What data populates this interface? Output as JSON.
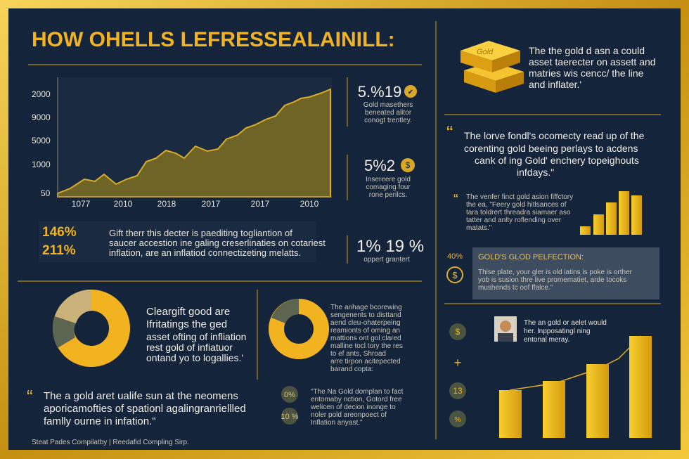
{
  "header": {
    "title": "HOW OHELLS LEFRESSEALAINILL:"
  },
  "trend": {
    "y_labels": [
      "2000",
      "9000",
      "5000",
      "1000",
      "50"
    ],
    "x_labels": [
      "1077",
      "2010",
      "2018",
      "2017",
      "2017",
      "2010"
    ]
  },
  "side_stats": [
    {
      "value": "5.%19",
      "icon": "✔",
      "lines": [
        "Gold masethers",
        "beneated alitor",
        "conogt trentley."
      ]
    },
    {
      "value": "5%2",
      "icon": "$",
      "lines": [
        "Insereere gold",
        "comaging four",
        "rone perilcs."
      ]
    },
    {
      "value": "1% 19 %",
      "lines": [
        "oppert grantert"
      ]
    }
  ],
  "summary": {
    "figures": [
      "146%",
      "211%"
    ],
    "lines": [
      "Gift therr this decter is paediting togliantion of",
      "saucer accestion ine galing creserlinaties on cotariest",
      "inflation, are an inflatiod connectizeting melatts."
    ]
  },
  "intro": {
    "lines": [
      "The the gold d asn a could",
      "asset taerecter on assett and",
      "matries wis cencc/ the line",
      "and inflater.'"
    ],
    "badge": "Gold"
  },
  "quote1": {
    "mark": "“",
    "lines": [
      "The lorve fondl's ocomecty read up of the",
      "corenting gold beeing perlays to acdens",
      "cank of ing Gold' enchery topeighouts",
      "infdays.\""
    ]
  },
  "quote2": {
    "mark": "“",
    "lines": [
      "The venfer finct gold asion fiffctory",
      "the ea, \"Feery gold hitlsances of",
      "tara toldrert threadra siamaer aso",
      "tatter and anlty roflending over",
      "matats.\""
    ]
  },
  "perfection": {
    "figure": "40%",
    "icon": "$",
    "heading": "GOLD'S GLOD PELFECTION:",
    "lines": [
      "Thise plate, your gler is old iatins is poke is orther",
      "yob is susion thre live promematiet, arde tocoks",
      "mushends tc oof ffalce.\""
    ]
  },
  "donut1": {
    "lines": [
      "Cleargift good are",
      "Ifritatings the ged",
      "asset ofting of infliation",
      "rest gold of infiatuor",
      "ontand yo to logallies.'"
    ]
  },
  "quote3": {
    "mark": "“",
    "lines": [
      "The a gold aret ualife sun at the neomens",
      "aporicamofties of spationl agalingranriellled",
      "famlly ourne in infation.\""
    ]
  },
  "donut2": {
    "lines": [
      "The anhage bcorewing",
      "sengenents to disttand",
      "aend cleu-ohaterpeing",
      "reamionts of oming an",
      "mattions ont gol clared",
      "malline tocl tory the res",
      "to ef ants, Shroad",
      "arre tirpon acitepected",
      "barand copta:"
    ]
  },
  "notes": {
    "figures": [
      "0%",
      "10 %"
    ],
    "lines": [
      "\"The Na Gold domplan to fact",
      "entomaby nction, Gotord free",
      "welicen of decion inonge to",
      "noler pold areonpoect of",
      "Inflation anyast.\""
    ]
  },
  "profile": {
    "lines": [
      "The an gold or aelet would",
      "her. lnpposatingl ning",
      "entonal meray."
    ],
    "icons": [
      "$",
      "+",
      "13",
      "%"
    ]
  },
  "footer": {
    "source": "Steat Pades Compilatby | Reedafid Compling Sirp."
  }
}
